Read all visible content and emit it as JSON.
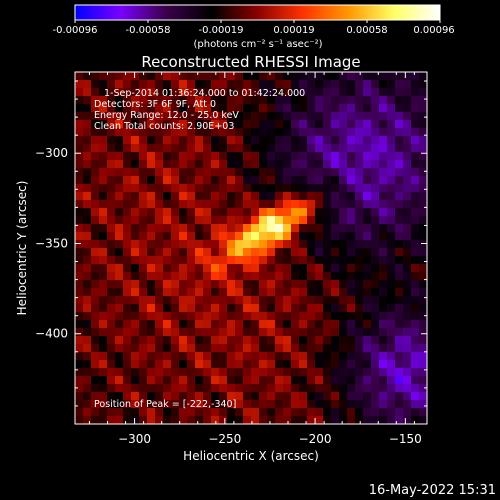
{
  "colorbar": {
    "ticks": [
      "-0.00096",
      "-0.00058",
      "-0.00019",
      "0.00019",
      "0.00058",
      "0.00096"
    ],
    "unit_label": "(photons cm⁻² s⁻¹ asec⁻²)"
  },
  "chart_data": {
    "type": "heatmap",
    "title": "Reconstructed RHESSI Image",
    "xlabel": "Heliocentric X (arcsec)",
    "ylabel": "Heliocentric Y (arcsec)",
    "xlim": [
      -333,
      -138
    ],
    "ylim": [
      -450,
      -255
    ],
    "x_ticks": [
      -300,
      -250,
      -200,
      -150
    ],
    "y_ticks": [
      -300,
      -350,
      -400
    ],
    "x_tick_labels": [
      "−300",
      "−250",
      "−200",
      "−150"
    ],
    "y_tick_labels": [
      "−300",
      "−350",
      "−400"
    ],
    "color_range": [
      -0.00096,
      0.00096
    ],
    "colormap": [
      "#0000ff",
      "#7a00ff",
      "#3a004a",
      "#000000",
      "#8b0000",
      "#ff3300",
      "#ff9900",
      "#ffff66",
      "#ffffff"
    ],
    "peak": {
      "x": -222,
      "y": -340
    },
    "annotations": [
      "1-Sep-2014 01:36:24.000 to 01:42:24.000",
      "Detectors: 3F 6F 9F, Att 0",
      "Energy Range: 12.0 - 25.0 keV",
      "Clean    Total counts: 2.90E+03",
      "Position of Peak = [-222,-340]"
    ]
  },
  "footer": {
    "timestamp": "16-May-2022 15:31"
  }
}
